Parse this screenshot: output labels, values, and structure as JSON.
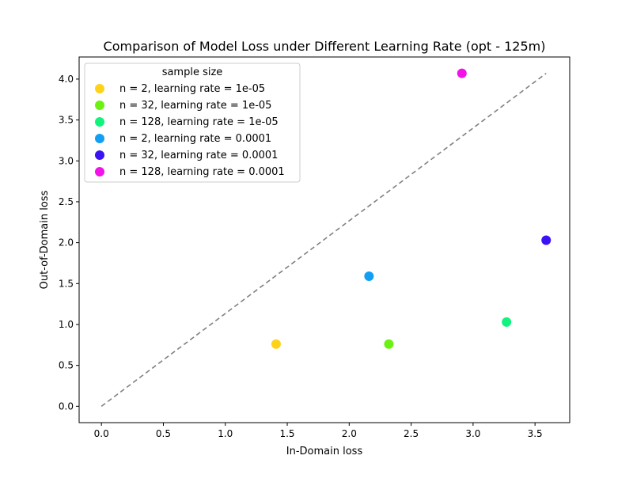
{
  "chart_data": {
    "type": "scatter",
    "title": "Comparison of Model Loss under Different Learning Rate (opt - 125m)",
    "xlabel": "In-Domain loss",
    "ylabel": "Out-of-Domain loss",
    "xlim": [
      -0.18,
      3.78
    ],
    "ylim": [
      -0.2,
      4.27
    ],
    "xticks": [
      0.0,
      0.5,
      1.0,
      1.5,
      2.0,
      2.5,
      3.0,
      3.5
    ],
    "xtick_labels": [
      "0.0",
      "0.5",
      "1.0",
      "1.5",
      "2.0",
      "2.5",
      "3.0",
      "3.5"
    ],
    "yticks": [
      0.0,
      0.5,
      1.0,
      1.5,
      2.0,
      2.5,
      3.0,
      3.5,
      4.0
    ],
    "ytick_labels": [
      "0.0",
      "0.5",
      "1.0",
      "1.5",
      "2.0",
      "2.5",
      "3.0",
      "3.5",
      "4.0"
    ],
    "grid": false,
    "legend_title": "sample size",
    "legend_position": "upper left",
    "reference_line": {
      "style": "dashed",
      "color": "#808080",
      "from": [
        0.0,
        0.0
      ],
      "to": [
        3.59,
        4.07
      ]
    },
    "series": [
      {
        "name": "n = 2, learning rate = 1e-05",
        "color": "#ffd21a",
        "x": 1.41,
        "y": 0.76
      },
      {
        "name": "n = 32, learning rate = 1e-05",
        "color": "#6cf212",
        "x": 2.32,
        "y": 0.76
      },
      {
        "name": "n = 128, learning rate = 1e-05",
        "color": "#12f37e",
        "x": 3.27,
        "y": 1.03
      },
      {
        "name": "n = 2, learning rate = 0.0001",
        "color": "#129ff3",
        "x": 2.16,
        "y": 1.59
      },
      {
        "name": "n = 32, learning rate = 0.0001",
        "color": "#3a12f3",
        "x": 3.59,
        "y": 2.03
      },
      {
        "name": "n = 128, learning rate = 0.0001",
        "color": "#f312e7",
        "x": 2.91,
        "y": 4.07
      }
    ]
  }
}
